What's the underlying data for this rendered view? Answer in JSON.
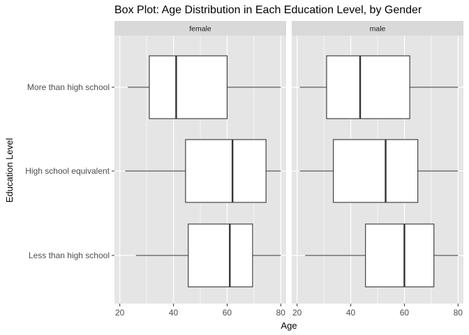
{
  "chart_data": {
    "type": "boxplot",
    "title": "Box Plot: Age Distribution in Each Education Level, by Gender",
    "xlabel": "Age",
    "ylabel": "Education Level",
    "xlim": [
      18,
      82
    ],
    "x_ticks": [
      20,
      40,
      60,
      80
    ],
    "categories": [
      "More than high school",
      "High school equivalent",
      "Less than high school"
    ],
    "facets": [
      {
        "label": "female",
        "boxes": [
          {
            "category": "More than high school",
            "min": 23,
            "q1": 31,
            "median": 41,
            "q3": 60,
            "max": 80
          },
          {
            "category": "High school equivalent",
            "min": 22,
            "q1": 44.5,
            "median": 62,
            "q3": 74.5,
            "max": 80
          },
          {
            "category": "Less than high school",
            "min": 26,
            "q1": 45.5,
            "median": 61,
            "q3": 69.5,
            "max": 80
          }
        ]
      },
      {
        "label": "male",
        "boxes": [
          {
            "category": "More than high school",
            "min": 21,
            "q1": 31,
            "median": 43.5,
            "q3": 62,
            "max": 80
          },
          {
            "category": "High school equivalent",
            "min": 21,
            "q1": 33.5,
            "median": 53,
            "q3": 65,
            "max": 80
          },
          {
            "category": "Less than high school",
            "min": 23,
            "q1": 45.5,
            "median": 60,
            "q3": 71,
            "max": 80
          }
        ]
      }
    ],
    "grid": true,
    "colors": {
      "panel_bg": "#e5e5e5",
      "strip_bg": "#d9d9d9",
      "grid": "#ffffff",
      "box_fill": "#ffffff",
      "box_line": "#333333"
    }
  }
}
